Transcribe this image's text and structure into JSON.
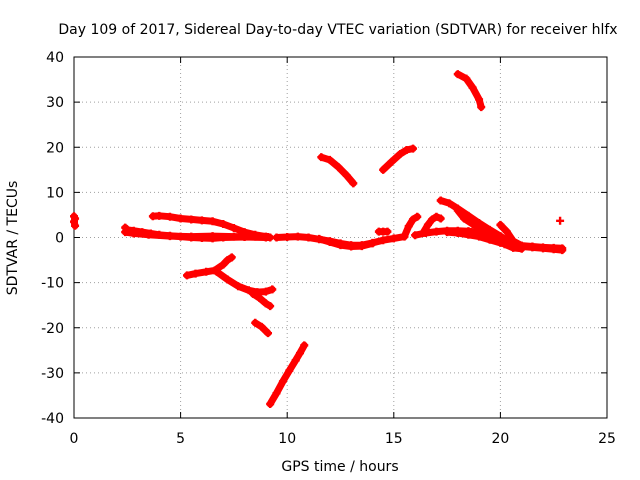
{
  "chart_data": {
    "type": "scatter",
    "title": "Day 109 of 2017, Sidereal Day-to-day VTEC variation (SDTVAR) for receiver hlfx",
    "xlabel": "GPS time / hours",
    "ylabel": "SDTVAR / TECUs",
    "xlim": [
      0,
      25
    ],
    "ylim": [
      -40,
      40
    ],
    "x_ticks": [
      0,
      5,
      10,
      15,
      20,
      25
    ],
    "y_ticks": [
      -40,
      -30,
      -20,
      -10,
      0,
      10,
      20,
      30,
      40
    ],
    "x_tick_labels": [
      "0",
      "5",
      "10",
      "15",
      "20",
      "25"
    ],
    "y_tick_labels": [
      "-40",
      "-30",
      "-20",
      "-10",
      "0",
      "10",
      "20",
      "30",
      "40"
    ],
    "grid": true,
    "marker": "plus",
    "series_color": "#ff0000",
    "series": [
      {
        "points": [
          [
            0.0,
            4.7
          ],
          [
            0.05,
            4.2
          ],
          [
            0.0,
            3.5
          ],
          [
            0.05,
            2.6
          ]
        ]
      },
      {
        "points": [
          [
            2.4,
            2.2
          ],
          [
            2.5,
            1.7
          ],
          [
            2.8,
            1.5
          ],
          [
            3.2,
            1.2
          ],
          [
            3.6,
            0.9
          ],
          [
            4.0,
            0.6
          ],
          [
            4.5,
            0.4
          ],
          [
            5.0,
            0.2
          ],
          [
            5.5,
            0.0
          ],
          [
            6.0,
            -0.1
          ],
          [
            6.5,
            -0.2
          ],
          [
            7.0,
            0.0
          ],
          [
            8.0,
            0.1
          ],
          [
            9.0,
            0.0
          ],
          [
            9.2,
            0.0
          ]
        ]
      },
      {
        "points": [
          [
            2.4,
            1.2
          ],
          [
            2.8,
            0.9
          ],
          [
            3.5,
            0.6
          ],
          [
            4.5,
            0.3
          ],
          [
            5.5,
            0.2
          ],
          [
            6.5,
            0.3
          ],
          [
            7.5,
            0.2
          ],
          [
            8.5,
            0.2
          ],
          [
            9.1,
            0.1
          ]
        ]
      },
      {
        "points": [
          [
            3.7,
            4.7
          ],
          [
            4.0,
            4.8
          ],
          [
            4.5,
            4.6
          ],
          [
            5.0,
            4.2
          ],
          [
            5.5,
            4.0
          ],
          [
            6.0,
            3.8
          ],
          [
            6.5,
            3.6
          ],
          [
            7.0,
            3.0
          ],
          [
            7.5,
            2.1
          ],
          [
            8.0,
            1.2
          ],
          [
            8.5,
            0.6
          ],
          [
            9.0,
            0.2
          ]
        ]
      },
      {
        "points": [
          [
            5.3,
            -8.4
          ],
          [
            5.7,
            -8.0
          ],
          [
            6.2,
            -7.6
          ],
          [
            6.6,
            -7.3
          ],
          [
            7.0,
            -6.0
          ],
          [
            7.2,
            -5.0
          ],
          [
            7.4,
            -4.4
          ]
        ]
      },
      {
        "points": [
          [
            6.7,
            -7.6
          ],
          [
            7.2,
            -9.3
          ],
          [
            7.7,
            -10.8
          ],
          [
            8.2,
            -11.7
          ],
          [
            8.6,
            -12.1
          ],
          [
            9.0,
            -12.0
          ],
          [
            9.3,
            -11.5
          ]
        ]
      },
      {
        "points": [
          [
            8.4,
            -12.5
          ],
          [
            8.7,
            -13.4
          ],
          [
            9.0,
            -14.6
          ],
          [
            9.2,
            -15.2
          ]
        ]
      },
      {
        "points": [
          [
            8.5,
            -18.9
          ],
          [
            8.8,
            -19.8
          ],
          [
            9.1,
            -21.2
          ]
        ]
      },
      {
        "points": [
          [
            9.2,
            -36.9
          ],
          [
            9.5,
            -34.5
          ],
          [
            9.8,
            -31.9
          ],
          [
            10.1,
            -29.5
          ],
          [
            10.4,
            -27.2
          ],
          [
            10.6,
            -25.6
          ],
          [
            10.8,
            -23.9
          ]
        ]
      },
      {
        "points": [
          [
            9.5,
            0.0
          ],
          [
            10.0,
            0.1
          ],
          [
            10.5,
            0.2
          ],
          [
            11.0,
            0.0
          ],
          [
            11.5,
            -0.4
          ],
          [
            12.0,
            -0.8
          ],
          [
            12.5,
            -1.3
          ],
          [
            13.0,
            -1.7
          ],
          [
            13.5,
            -1.7
          ],
          [
            14.0,
            -1.2
          ],
          [
            14.5,
            -0.6
          ],
          [
            15.0,
            -0.2
          ],
          [
            15.5,
            0.2
          ]
        ]
      },
      {
        "points": [
          [
            11.5,
            -0.3
          ],
          [
            12.0,
            -1.0
          ],
          [
            12.5,
            -1.7
          ],
          [
            13.0,
            -2.0
          ],
          [
            13.5,
            -1.9
          ],
          [
            14.0,
            -1.3
          ]
        ]
      },
      {
        "points": [
          [
            11.6,
            17.8
          ],
          [
            12.0,
            17.2
          ],
          [
            12.4,
            15.6
          ],
          [
            12.8,
            13.7
          ],
          [
            13.1,
            12.0
          ]
        ]
      },
      {
        "points": [
          [
            14.5,
            15.0
          ],
          [
            14.9,
            16.8
          ],
          [
            15.3,
            18.5
          ],
          [
            15.6,
            19.4
          ],
          [
            15.9,
            19.7
          ]
        ]
      },
      {
        "points": [
          [
            14.3,
            1.3
          ],
          [
            14.5,
            1.3
          ],
          [
            14.7,
            1.3
          ]
        ]
      },
      {
        "points": [
          [
            15.5,
            0.3
          ],
          [
            15.7,
            2.5
          ],
          [
            15.9,
            4.0
          ],
          [
            16.1,
            4.6
          ]
        ]
      },
      {
        "points": [
          [
            16.4,
            1.2
          ],
          [
            16.6,
            2.8
          ],
          [
            16.8,
            4.0
          ],
          [
            17.0,
            4.6
          ],
          [
            17.2,
            4.2
          ]
        ]
      },
      {
        "points": [
          [
            16.0,
            0.5
          ],
          [
            16.5,
            1.0
          ],
          [
            17.0,
            1.3
          ],
          [
            17.5,
            1.5
          ],
          [
            18.0,
            1.5
          ],
          [
            18.5,
            1.4
          ],
          [
            19.0,
            1.2
          ],
          [
            19.5,
            0.5
          ],
          [
            20.0,
            -0.6
          ],
          [
            20.5,
            -1.6
          ],
          [
            21.0,
            -2.0
          ],
          [
            21.5,
            -2.2
          ],
          [
            22.0,
            -2.4
          ],
          [
            22.5,
            -2.6
          ],
          [
            22.9,
            -2.8
          ]
        ]
      },
      {
        "points": [
          [
            17.2,
            8.2
          ],
          [
            17.6,
            7.6
          ],
          [
            18.0,
            6.4
          ],
          [
            18.5,
            4.8
          ],
          [
            19.0,
            3.2
          ],
          [
            19.5,
            1.7
          ],
          [
            20.0,
            0.3
          ],
          [
            20.4,
            -1.0
          ],
          [
            20.8,
            -1.8
          ]
        ]
      },
      {
        "points": [
          [
            17.5,
            1.2
          ],
          [
            18.0,
            1.0
          ],
          [
            18.5,
            0.6
          ],
          [
            19.0,
            0.2
          ],
          [
            19.5,
            -0.5
          ],
          [
            20.0,
            -1.2
          ],
          [
            20.5,
            -1.7
          ]
        ]
      },
      {
        "points": [
          [
            18.0,
            6.0
          ],
          [
            18.3,
            4.2
          ],
          [
            18.7,
            3.0
          ],
          [
            19.1,
            2.0
          ],
          [
            19.4,
            1.2
          ],
          [
            19.8,
            0.0
          ],
          [
            20.2,
            -1.5
          ],
          [
            20.6,
            -2.3
          ],
          [
            21.0,
            -2.5
          ]
        ]
      },
      {
        "points": [
          [
            20.0,
            2.8
          ],
          [
            20.3,
            1.3
          ],
          [
            20.6,
            -0.8
          ],
          [
            21.0,
            -1.8
          ],
          [
            21.5,
            -2.0
          ],
          [
            22.0,
            -2.2
          ],
          [
            22.5,
            -2.3
          ],
          [
            22.9,
            -2.4
          ]
        ]
      },
      {
        "points": [
          [
            18.0,
            36.2
          ],
          [
            18.4,
            35.2
          ],
          [
            18.7,
            33.2
          ],
          [
            19.0,
            30.6
          ],
          [
            19.1,
            28.9
          ]
        ]
      },
      {
        "points": [
          [
            22.8,
            3.7
          ]
        ]
      }
    ]
  }
}
